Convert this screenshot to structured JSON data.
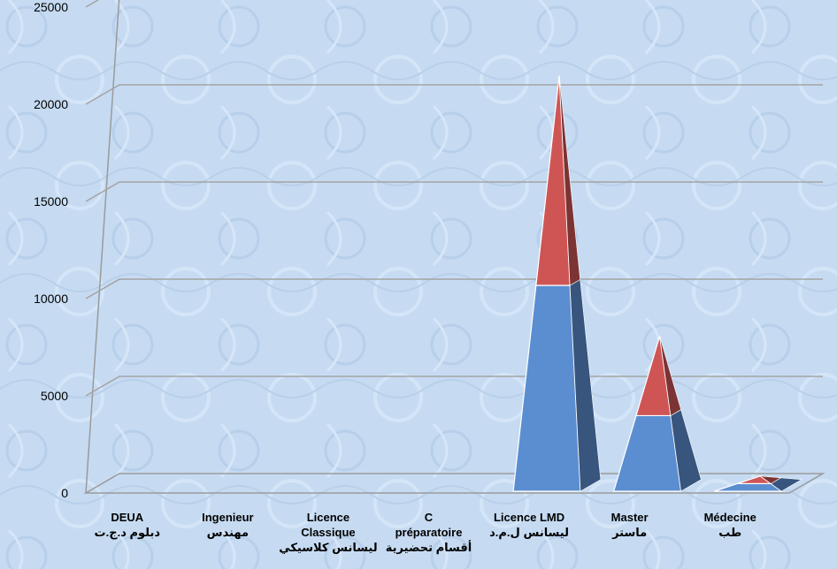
{
  "chart_data": {
    "type": "bar",
    "style": "3d-pyramid-stacked",
    "title": "",
    "xlabel": "",
    "ylabel": "",
    "ylim": [
      0,
      25000
    ],
    "yticks": [
      0,
      5000,
      10000,
      15000,
      20000,
      25000
    ],
    "grid": true,
    "legend": "none",
    "categories": [
      {
        "lines": [
          "DEUA",
          "دبلوم د.ج.ت"
        ]
      },
      {
        "lines": [
          "Ingenieur",
          "مهندس"
        ]
      },
      {
        "lines": [
          "Licence",
          "Classique",
          "ليسانس كلاسيكي"
        ]
      },
      {
        "lines": [
          "C",
          "préparatoire",
          "أقسام تحضيرية"
        ]
      },
      {
        "lines": [
          "Licence LMD",
          "ليسانس ل.م.د"
        ]
      },
      {
        "lines": [
          "Master",
          "ماستر"
        ]
      },
      {
        "lines": [
          "Médecine",
          "طب"
        ]
      }
    ],
    "series": [
      {
        "color": "#5b8ed0",
        "values": [
          0,
          0,
          0,
          0,
          10500,
          3800,
          300
        ]
      },
      {
        "color": "#cf5555",
        "values": [
          0,
          0,
          0,
          0,
          10700,
          4000,
          300
        ]
      }
    ]
  }
}
